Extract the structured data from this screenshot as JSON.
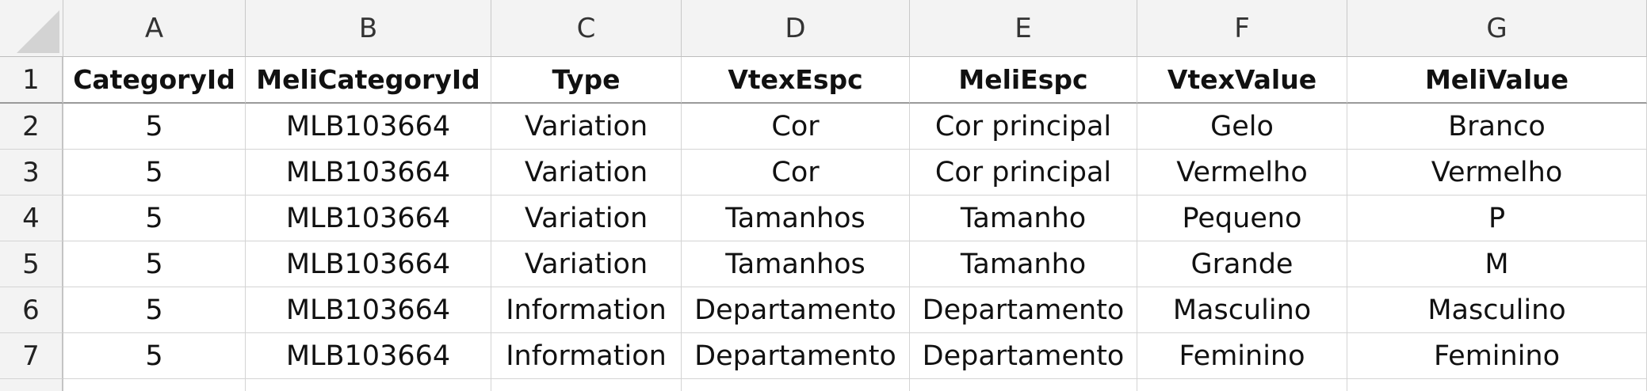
{
  "columns": [
    "A",
    "B",
    "C",
    "D",
    "E",
    "F",
    "G"
  ],
  "row_numbers": [
    "1",
    "2",
    "3",
    "4",
    "5",
    "6",
    "7"
  ],
  "header_row": [
    "CategoryId",
    "MeliCategoryId",
    "Type",
    "VtexEspc",
    "MeliEspc",
    "VtexValue",
    "MeliValue"
  ],
  "rows": [
    [
      "5",
      "MLB103664",
      "Variation",
      "Cor",
      "Cor principal",
      "Gelo",
      "Branco"
    ],
    [
      "5",
      "MLB103664",
      "Variation",
      "Cor",
      "Cor principal",
      "Vermelho",
      "Vermelho"
    ],
    [
      "5",
      "MLB103664",
      "Variation",
      "Tamanhos",
      "Tamanho",
      "Pequeno",
      "P"
    ],
    [
      "5",
      "MLB103664",
      "Variation",
      "Tamanhos",
      "Tamanho",
      "Grande",
      "M"
    ],
    [
      "5",
      "MLB103664",
      "Information",
      "Departamento",
      "Departamento",
      "Masculino",
      "Masculino"
    ],
    [
      "5",
      "MLB103664",
      "Information",
      "Departamento",
      "Departamento",
      "Feminino",
      "Feminino"
    ]
  ]
}
